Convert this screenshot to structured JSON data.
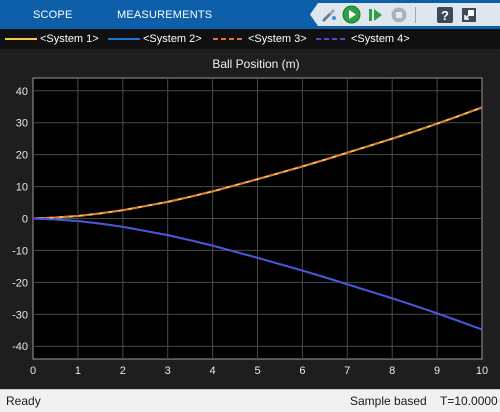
{
  "toolstrip": {
    "tabs": [
      {
        "label": "SCOPE"
      },
      {
        "label": "MEASUREMENTS"
      }
    ],
    "toolbar_icons": [
      "brush-icon",
      "run-icon",
      "step-forward-icon",
      "stop-icon",
      "help-icon",
      "undock-icon"
    ]
  },
  "legend": {
    "items": [
      {
        "label": "<System 1>",
        "color": "#f2c94c",
        "style": "solid"
      },
      {
        "label": "<System 2>",
        "color": "#1f77d4",
        "style": "solid"
      },
      {
        "label": "<System 3>",
        "color": "#e0743a",
        "style": "dashed"
      },
      {
        "label": "<System 4>",
        "color": "#6a3fd8",
        "style": "dashed"
      }
    ]
  },
  "chart_data": {
    "type": "line",
    "title": "Ball Position (m)",
    "xlim": [
      0,
      10
    ],
    "ylim": [
      -44,
      44
    ],
    "xticks": [
      0,
      1,
      2,
      3,
      4,
      5,
      6,
      7,
      8,
      9,
      10
    ],
    "yticks": [
      40,
      30,
      20,
      10,
      0,
      -10,
      -20,
      -30,
      -40
    ],
    "grid": true,
    "x": [
      0,
      0.5,
      1,
      1.5,
      2,
      2.5,
      3,
      3.5,
      4,
      4.5,
      5,
      5.5,
      6,
      6.5,
      7,
      7.5,
      8,
      8.5,
      9,
      9.5,
      10
    ],
    "series": [
      {
        "name": "<System 1>",
        "color": "#f2c94c",
        "style": "solid",
        "values": [
          0,
          0.3,
          0.8,
          1.6,
          2.6,
          3.9,
          5.2,
          6.8,
          8.5,
          10.4,
          12.3,
          14.3,
          16.3,
          18.4,
          20.6,
          22.8,
          25.0,
          27.3,
          29.7,
          32.2,
          34.8
        ]
      },
      {
        "name": "<System 2>",
        "color": "#1f77d4",
        "style": "solid",
        "values": [
          0,
          -0.3,
          -0.8,
          -1.6,
          -2.6,
          -3.9,
          -5.2,
          -6.8,
          -8.5,
          -10.4,
          -12.3,
          -14.3,
          -16.3,
          -18.4,
          -20.6,
          -22.8,
          -25.0,
          -27.3,
          -29.7,
          -32.2,
          -34.8
        ]
      },
      {
        "name": "<System 3>",
        "color": "#e0743a",
        "style": "dashed",
        "values": [
          0,
          0.3,
          0.8,
          1.6,
          2.6,
          3.9,
          5.2,
          6.8,
          8.5,
          10.4,
          12.3,
          14.3,
          16.3,
          18.4,
          20.6,
          22.8,
          25.0,
          27.3,
          29.7,
          32.2,
          34.8
        ]
      },
      {
        "name": "<System 4>",
        "color": "#6a3fd8",
        "style": "dashed",
        "values": [
          0,
          -0.3,
          -0.8,
          -1.6,
          -2.6,
          -3.9,
          -5.2,
          -6.8,
          -8.5,
          -10.4,
          -12.3,
          -14.3,
          -16.3,
          -18.4,
          -20.6,
          -22.8,
          -25.0,
          -27.3,
          -29.7,
          -32.2,
          -34.8
        ]
      }
    ]
  },
  "status": {
    "ready": "Ready",
    "mode": "Sample based",
    "time": "T=10.0000"
  }
}
